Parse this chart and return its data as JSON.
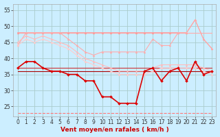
{
  "x": [
    0,
    1,
    2,
    3,
    4,
    5,
    6,
    7,
    8,
    9,
    10,
    11,
    12,
    13,
    14,
    15,
    16,
    17,
    18,
    19,
    20,
    21,
    22,
    23
  ],
  "series": [
    {
      "name": "top_flat_pink",
      "color": "#ffaaaa",
      "linewidth": 0.8,
      "marker": null,
      "markersize": 0,
      "linestyle": "-",
      "values": [
        48,
        48,
        48,
        48,
        48,
        48,
        48,
        48,
        48,
        48,
        48,
        48,
        48,
        48,
        48,
        48,
        48,
        48,
        48,
        48,
        48,
        48,
        48,
        48
      ]
    },
    {
      "name": "rafales_with_marker",
      "color": "#ff9999",
      "linewidth": 0.8,
      "marker": "^",
      "markersize": 2.0,
      "linestyle": "-",
      "values": [
        48,
        48,
        48,
        48,
        48,
        48,
        48,
        48,
        48,
        48,
        48,
        48,
        48,
        48,
        48,
        48,
        48,
        48,
        48,
        48,
        48,
        52,
        46,
        43
      ]
    },
    {
      "name": "upper_pink_declining",
      "color": "#ffaaaa",
      "linewidth": 0.8,
      "marker": "^",
      "markersize": 2.0,
      "linestyle": "-",
      "values": [
        44,
        48,
        48,
        48,
        48,
        48,
        46,
        44,
        42,
        41,
        42,
        42,
        42,
        42,
        42,
        42,
        46,
        44,
        44,
        48,
        48,
        52,
        46,
        43
      ]
    },
    {
      "name": "mid_pink_declining",
      "color": "#ffbbbb",
      "linewidth": 0.8,
      "marker": "^",
      "markersize": 2.0,
      "linestyle": "-",
      "values": [
        45,
        47,
        46,
        47,
        46,
        45,
        44,
        42,
        40,
        39,
        38,
        37,
        36,
        36,
        36,
        36,
        37,
        38,
        38,
        38,
        38,
        38,
        37,
        36
      ]
    },
    {
      "name": "lower_pink_declining",
      "color": "#ffcccc",
      "linewidth": 0.8,
      "marker": "^",
      "markersize": 2.0,
      "linestyle": "-",
      "values": [
        44,
        46,
        45,
        46,
        45,
        44,
        43,
        41,
        39,
        38,
        37,
        36,
        35,
        35,
        35,
        35,
        36,
        37,
        37,
        37,
        37,
        37,
        36,
        35
      ]
    },
    {
      "name": "flat_red_upper",
      "color": "#cc3333",
      "linewidth": 0.8,
      "marker": null,
      "markersize": 0,
      "linestyle": "-",
      "values": [
        37,
        37,
        37,
        37,
        37,
        37,
        37,
        37,
        37,
        37,
        37,
        37,
        37,
        37,
        37,
        37,
        37,
        37,
        37,
        37,
        37,
        37,
        37,
        37
      ]
    },
    {
      "name": "flat_red_lower",
      "color": "#aa0000",
      "linewidth": 0.8,
      "marker": null,
      "markersize": 0,
      "linestyle": "-",
      "values": [
        36,
        36,
        36,
        36,
        36,
        36,
        36,
        36,
        36,
        36,
        36,
        36,
        36,
        36,
        36,
        36,
        36,
        36,
        36,
        36,
        36,
        36,
        36,
        36
      ]
    },
    {
      "name": "vent_moyen_main",
      "color": "#dd0000",
      "linewidth": 1.2,
      "marker": "D",
      "markersize": 2.0,
      "linestyle": "-",
      "values": [
        37,
        39,
        39,
        37,
        36,
        36,
        35,
        35,
        33,
        33,
        28,
        28,
        26,
        26,
        26,
        36,
        37,
        33,
        36,
        37,
        33,
        39,
        35,
        36
      ]
    },
    {
      "name": "dashed_bottom",
      "color": "#ff7777",
      "linewidth": 0.8,
      "marker": null,
      "markersize": 0,
      "linestyle": "--",
      "values": [
        23,
        23,
        23,
        23,
        23,
        23,
        23,
        23,
        23,
        23,
        23,
        23,
        23,
        23,
        23,
        23,
        23,
        23,
        23,
        23,
        23,
        23,
        23,
        23
      ]
    }
  ],
  "xlabel": "Vent moyen/en rafales ( km/h )",
  "xlim": [
    -0.5,
    23.5
  ],
  "ylim": [
    22,
    57
  ],
  "yticks": [
    25,
    30,
    35,
    40,
    45,
    50,
    55
  ],
  "xticks": [
    0,
    1,
    2,
    3,
    4,
    5,
    6,
    7,
    8,
    9,
    10,
    11,
    12,
    13,
    14,
    15,
    16,
    17,
    18,
    19,
    20,
    21,
    22,
    23
  ],
  "background_color": "#cceeff",
  "grid_color": "#aacccc",
  "xlabel_fontsize": 6.5,
  "tick_fontsize": 5.5
}
